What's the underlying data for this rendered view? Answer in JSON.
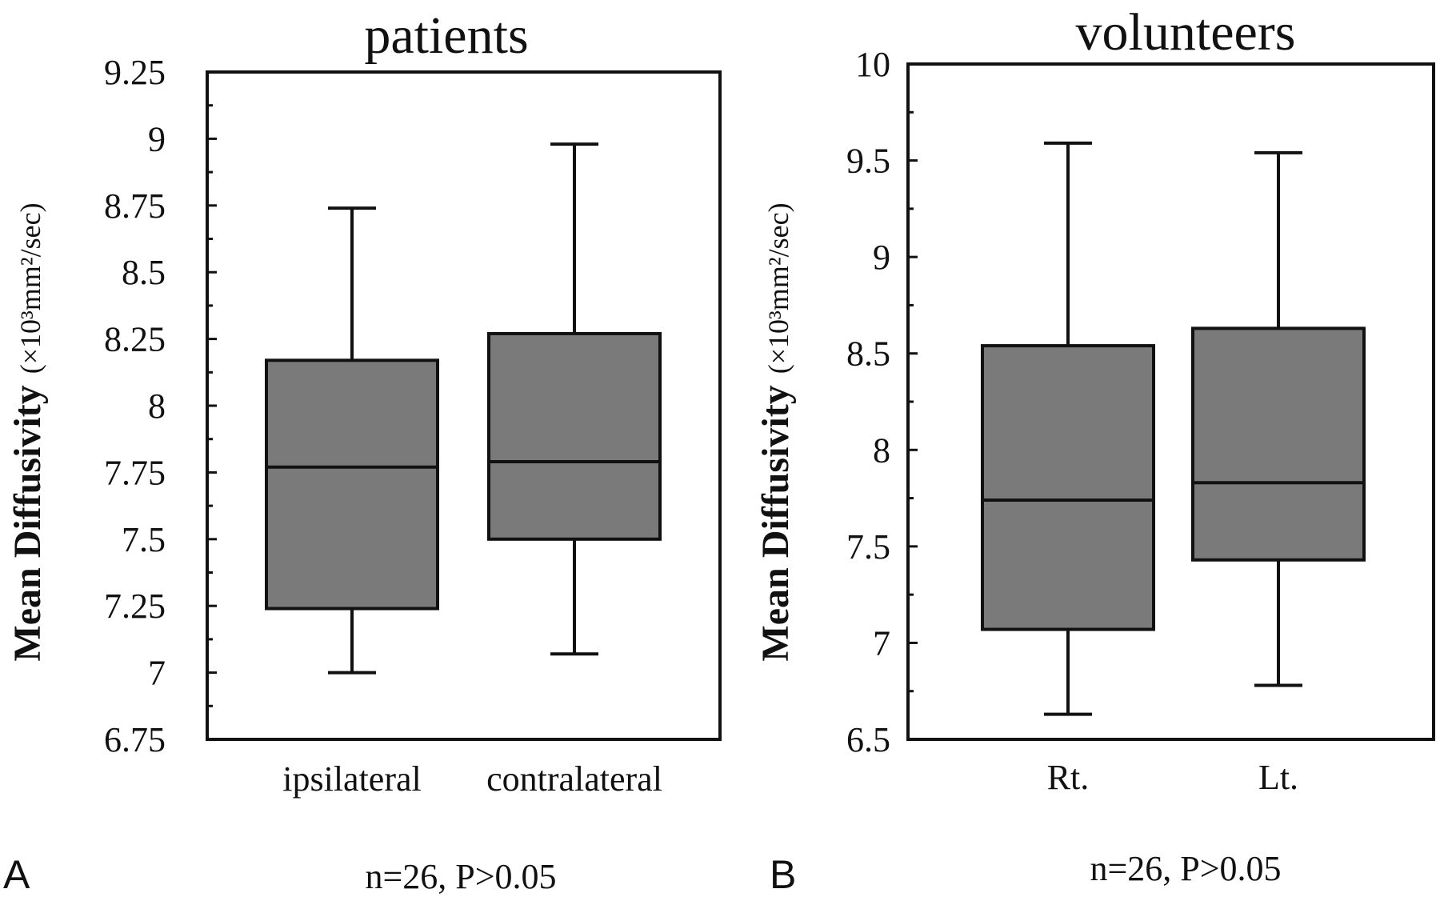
{
  "chart_data": [
    {
      "type": "box",
      "panel_label": "A",
      "title": "patients",
      "ylabel_main": "Mean Diffusivity",
      "ylabel_unit": "(×10³mm²/sec)",
      "ylim": [
        6.75,
        9.25
      ],
      "yticks": [
        "6.75",
        "7",
        "7.25",
        "7.5",
        "7.75",
        "8",
        "8.25",
        "8.5",
        "8.75",
        "9",
        "9.25"
      ],
      "categories": [
        "ipsilateral",
        "contralateral"
      ],
      "boxes": [
        {
          "category": "ipsilateral",
          "min": 7.0,
          "q1": 7.24,
          "median": 7.77,
          "q3": 8.17,
          "max": 8.74
        },
        {
          "category": "contralateral",
          "min": 7.07,
          "q1": 7.5,
          "median": 7.79,
          "q3": 8.27,
          "max": 8.98
        }
      ],
      "footnote": "n=26, P>0.05",
      "box_color": "#7a7a7a"
    },
    {
      "type": "box",
      "panel_label": "B",
      "title": "volunteers",
      "ylabel_main": "Mean Diffusivity",
      "ylabel_unit": "(×10³mm²/sec)",
      "ylim": [
        6.5,
        10
      ],
      "yticks": [
        "6.5",
        "7",
        "7.5",
        "8",
        "8.5",
        "9",
        "9.5",
        "10"
      ],
      "categories": [
        "Rt.",
        "Lt."
      ],
      "boxes": [
        {
          "category": "Rt.",
          "min": 6.63,
          "q1": 7.07,
          "median": 7.74,
          "q3": 8.54,
          "max": 9.59
        },
        {
          "category": "Lt.",
          "min": 6.78,
          "q1": 7.43,
          "median": 7.83,
          "q3": 8.63,
          "max": 9.54
        }
      ],
      "footnote": "n=26, P>0.05",
      "box_color": "#7a7a7a"
    }
  ]
}
